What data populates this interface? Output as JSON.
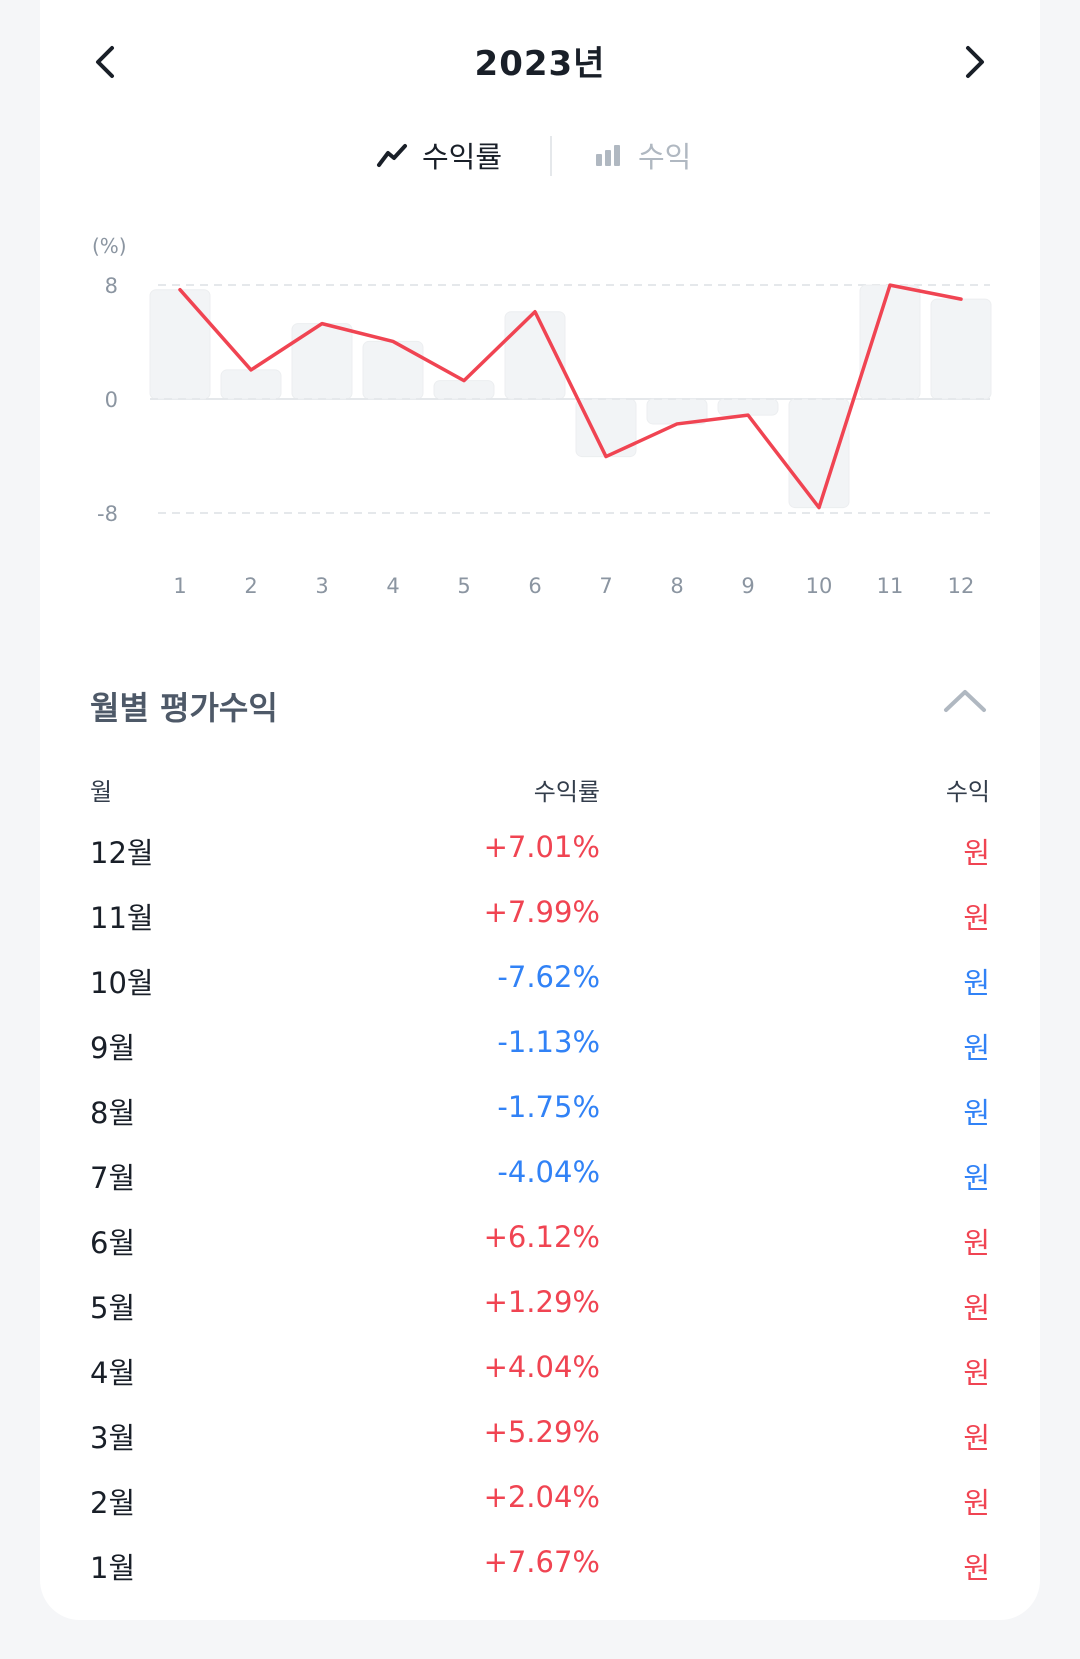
{
  "header": {
    "year_title": "2023년",
    "prev_icon": "chevron-left-icon",
    "next_icon": "chevron-right-icon"
  },
  "toggle": {
    "rate_label": "수익률",
    "profit_label": "수익",
    "rate_icon": "line-chart-icon",
    "profit_icon": "bar-chart-icon"
  },
  "chart_data": {
    "type": "bar",
    "ylabel": "(%)",
    "yticks": [
      "8",
      "0",
      "-8"
    ],
    "ylim": [
      -8,
      8
    ],
    "categories": [
      "1",
      "2",
      "3",
      "4",
      "5",
      "6",
      "7",
      "8",
      "9",
      "10",
      "11",
      "12"
    ],
    "series": [
      {
        "values": [
          7.67,
          2.04,
          5.29,
          4.04,
          1.29,
          6.12,
          -4.04,
          -1.75,
          -1.13,
          -7.62,
          7.99,
          7.01
        ]
      }
    ],
    "grid": true,
    "line_color": "#f04452",
    "bar_color": "#f2f4f6"
  },
  "section": {
    "title": "월별 평가수익",
    "collapse_icon": "chevron-up-icon"
  },
  "table": {
    "headers": {
      "month": "월",
      "rate": "수익률",
      "profit": "수익"
    },
    "rows": [
      {
        "month": "12월",
        "rate": "+7.01%",
        "profit": "원"
      },
      {
        "month": "11월",
        "rate": "+7.99%",
        "profit": "원"
      },
      {
        "month": "10월",
        "rate": "-7.62%",
        "profit": "원"
      },
      {
        "month": "9월",
        "rate": "-1.13%",
        "profit": "원"
      },
      {
        "month": "8월",
        "rate": "-1.75%",
        "profit": "원"
      },
      {
        "month": "7월",
        "rate": "-4.04%",
        "profit": "원"
      },
      {
        "month": "6월",
        "rate": "+6.12%",
        "profit": "원"
      },
      {
        "month": "5월",
        "rate": "+1.29%",
        "profit": "원"
      },
      {
        "month": "4월",
        "rate": "+4.04%",
        "profit": "원"
      },
      {
        "month": "3월",
        "rate": "+5.29%",
        "profit": "원"
      },
      {
        "month": "2월",
        "rate": "+2.04%",
        "profit": "원"
      },
      {
        "month": "1월",
        "rate": "+7.67%",
        "profit": "원"
      }
    ]
  },
  "colors": {
    "positive": "#f04452",
    "negative": "#3182f6"
  }
}
